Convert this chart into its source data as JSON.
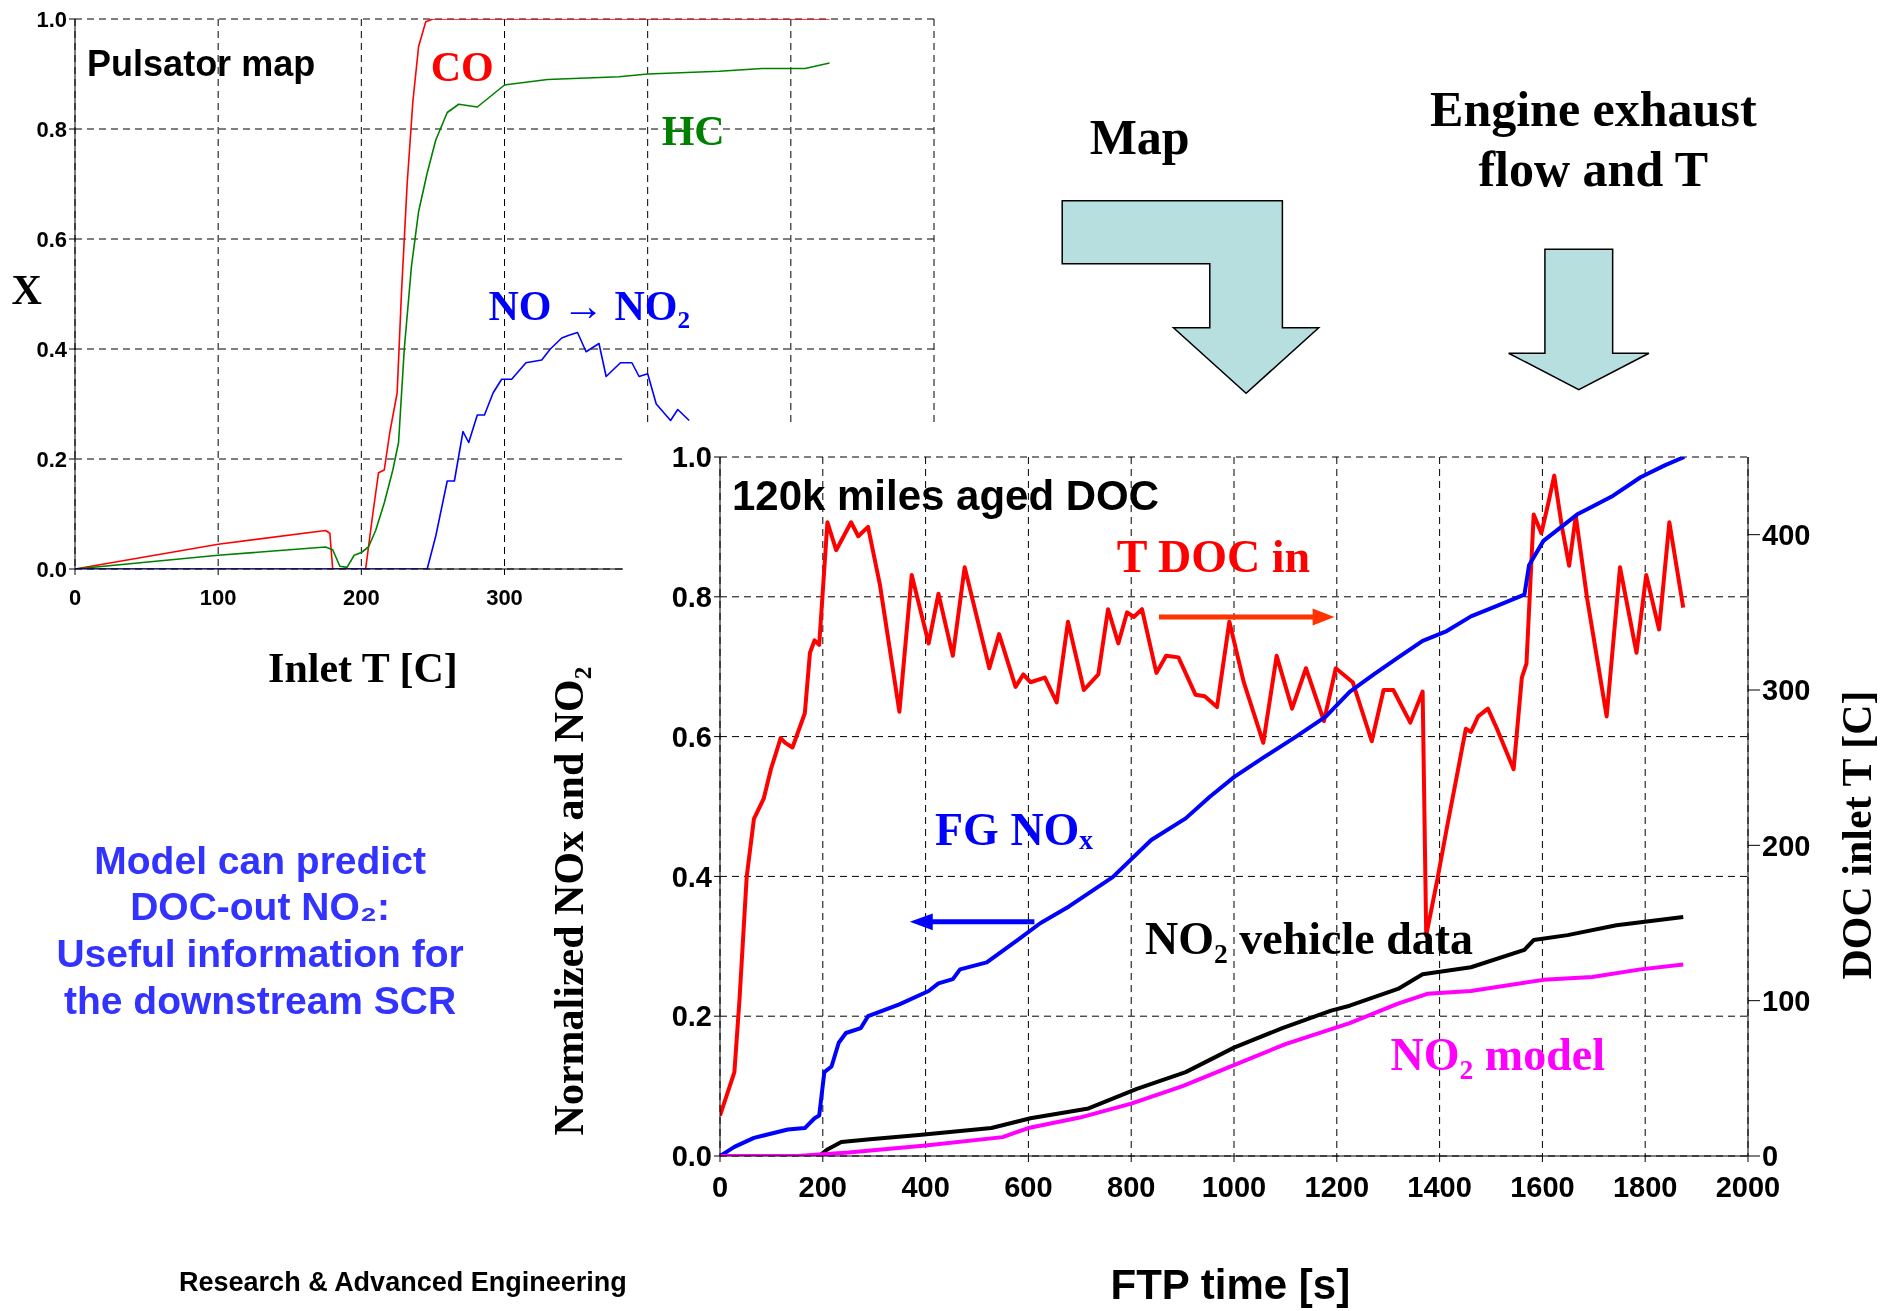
{
  "chart_data": [
    {
      "type": "line",
      "title": "Pulsator map",
      "xlabel": "Inlet T [C]",
      "ylabel": "X",
      "xlim": [
        0,
        600
      ],
      "xticks": [
        0,
        100,
        200,
        300,
        {
          "value": 400,
          "label": null
        },
        {
          "value": 500,
          "label": null
        },
        {
          "value": 600,
          "label": null
        }
      ],
      "ylim": [
        0,
        1
      ],
      "yticks": [
        {
          "value": 0,
          "label": "0.0"
        },
        {
          "value": 0.2,
          "label": "0.2"
        },
        {
          "value": 0.4,
          "label": "0.4"
        },
        {
          "value": 0.6,
          "label": "0.6"
        },
        {
          "value": 0.8,
          "label": "0.8"
        },
        {
          "value": 1,
          "label": "1.0"
        }
      ],
      "grid": true,
      "series": [
        {
          "name": "CO",
          "color": "#ff0000",
          "x": [
            0,
            100,
            175,
            178,
            180,
            203,
            208,
            212,
            216,
            220,
            225,
            228,
            232,
            236,
            240,
            245,
            250,
            527
          ],
          "values": [
            0,
            0.045,
            0.07,
            0.065,
            0,
            0,
            0.1,
            0.175,
            0.18,
            0.25,
            0.32,
            0.5,
            0.7,
            0.85,
            0.95,
            0.995,
            1,
            1
          ]
        },
        {
          "name": "HC",
          "color": "#008000",
          "x": [
            0,
            100,
            175,
            180,
            185,
            190,
            195,
            200,
            205,
            210,
            216,
            222,
            226,
            230,
            235,
            240,
            246,
            252,
            260,
            268,
            281,
            300,
            330,
            380,
            400,
            450,
            480,
            510,
            527
          ],
          "values": [
            0,
            0.025,
            0.04,
            0.035,
            0.005,
            0.003,
            0.025,
            0.03,
            0.04,
            0.07,
            0.12,
            0.18,
            0.23,
            0.4,
            0.55,
            0.65,
            0.72,
            0.78,
            0.83,
            0.845,
            0.84,
            0.88,
            0.89,
            0.895,
            0.9,
            0.905,
            0.91,
            0.91,
            0.92
          ]
        },
        {
          "name": "NO → NO₂",
          "color": "#0000ff",
          "x": [
            0,
            246,
            252,
            260,
            265,
            271,
            275,
            281,
            286,
            292,
            298,
            305,
            315,
            326,
            332,
            340,
            345,
            351,
            357,
            366,
            371,
            381,
            389,
            394,
            400,
            406,
            416,
            421,
            429
          ],
          "values": [
            0,
            0,
            0.06,
            0.16,
            0.16,
            0.25,
            0.23,
            0.28,
            0.28,
            0.32,
            0.345,
            0.345,
            0.375,
            0.38,
            0.4,
            0.42,
            0.425,
            0.43,
            0.395,
            0.41,
            0.35,
            0.375,
            0.375,
            0.35,
            0.355,
            0.3,
            0.27,
            0.29,
            0.27
          ]
        }
      ]
    },
    {
      "type": "line",
      "title": "120k miles aged DOC",
      "xlabel": "FTP time [s]",
      "ylabel": "Normalized NOx and NO₂",
      "y2label": "DOC inlet T [C]",
      "xlim": [
        0,
        2000
      ],
      "xticks": [
        0,
        200,
        400,
        600,
        800,
        1000,
        1200,
        1400,
        1600,
        1800,
        2000
      ],
      "ylim": [
        0,
        1
      ],
      "yticks": [
        {
          "value": 0,
          "label": "0.0"
        },
        {
          "value": 0.2,
          "label": "0.2"
        },
        {
          "value": 0.4,
          "label": "0.4"
        },
        {
          "value": 0.6,
          "label": "0.6"
        },
        {
          "value": 0.8,
          "label": "0.8"
        },
        {
          "value": 1,
          "label": "1.0"
        }
      ],
      "y2lim": [
        0,
        450
      ],
      "y2ticks": [
        0,
        100,
        200,
        300,
        400
      ],
      "grid": true,
      "annotations": [
        "Map",
        "Engine exhaust\nflow and T",
        "Model can predict\nDOC-out NO₂:\nUseful information for\nthe downstream SCR",
        "Research & Advanced Engineering"
      ],
      "series": [
        {
          "name": "T DOC in",
          "color": "#ff0000",
          "axis": "y2",
          "x": [
            0,
            9,
            28,
            38,
            52,
            66,
            85,
            99,
            118,
            127,
            141,
            165,
            175,
            184,
            193,
            209,
            226,
            255,
            269,
            288,
            311,
            349,
            373,
            406,
            425,
            453,
            476,
            524,
            543,
            575,
            590,
            604,
            632,
            655,
            677,
            708,
            736,
            755,
            775,
            792,
            805,
            821,
            849,
            868,
            892,
            925,
            943,
            967,
            991,
            1019,
            1057,
            1083,
            1113,
            1140,
            1175,
            1198,
            1231,
            1268,
            1291,
            1310,
            1343,
            1367,
            1374,
            1395,
            1414,
            1432,
            1451,
            1461,
            1475,
            1494,
            1513,
            1544,
            1560,
            1569,
            1583,
            1598,
            1612,
            1623,
            1638,
            1652,
            1665,
            1687,
            1725,
            1751,
            1783,
            1802,
            1827,
            1847,
            1874
          ],
          "values": [
            26,
            35,
            54,
            101,
            180,
            217,
            230,
            249,
            269,
            266,
            263,
            285,
            324,
            332,
            329,
            408,
            390,
            408,
            399,
            405,
            368,
            286,
            374,
            330,
            362,
            322,
            379,
            314,
            336,
            302,
            310,
            305,
            308,
            292,
            344,
            300,
            310,
            352,
            330,
            350,
            347,
            352,
            311,
            322,
            321,
            297,
            296,
            289,
            344,
            305,
            266,
            322,
            288,
            314,
            280,
            314,
            305,
            267,
            300,
            300,
            279,
            299,
            142,
            177,
            211,
            242,
            275,
            273,
            283,
            288,
            274,
            249,
            308,
            317,
            413,
            401,
            421,
            438,
            405,
            380,
            412,
            359,
            283,
            379,
            324,
            374,
            339,
            408,
            353
          ]
        },
        {
          "name": "FG NOₓ",
          "color": "#0000ff",
          "x": [
            0,
            28,
            66,
            132,
            165,
            184,
            193,
            203,
            217,
            231,
            245,
            274,
            288,
            349,
            406,
            425,
            453,
            467,
            519,
            566,
            623,
            679,
            764,
            839,
            906,
            953,
            1000,
            1057,
            1123,
            1179,
            1225,
            1272,
            1319,
            1367,
            1414,
            1461,
            1508,
            1565,
            1574,
            1602,
            1668,
            1734,
            1791,
            1838,
            1876
          ],
          "values": [
            0,
            0.013,
            0.026,
            0.038,
            0.04,
            0.054,
            0.058,
            0.12,
            0.128,
            0.162,
            0.176,
            0.183,
            0.2,
            0.217,
            0.236,
            0.247,
            0.253,
            0.267,
            0.277,
            0.302,
            0.333,
            0.357,
            0.399,
            0.452,
            0.483,
            0.514,
            0.542,
            0.57,
            0.601,
            0.629,
            0.664,
            0.689,
            0.713,
            0.737,
            0.751,
            0.772,
            0.786,
            0.803,
            0.845,
            0.88,
            0.918,
            0.943,
            0.971,
            0.988,
            1
          ]
        },
        {
          "name": "NO₂ vehicle data",
          "color": "#000000",
          "x": [
            0,
            193,
            208,
            236,
            292,
            387,
            528,
            604,
            717,
            811,
            906,
            1000,
            1094,
            1189,
            1225,
            1319,
            1367,
            1461,
            1565,
            1583,
            1649,
            1744,
            1874
          ],
          "values": [
            0,
            0,
            0.009,
            0.02,
            0.024,
            0.03,
            0.04,
            0.054,
            0.068,
            0.096,
            0.12,
            0.155,
            0.183,
            0.208,
            0.215,
            0.239,
            0.26,
            0.27,
            0.295,
            0.309,
            0.316,
            0.33,
            0.342
          ]
        },
        {
          "name": "NO₂ model",
          "color": "#ff00ff",
          "x": [
            0,
            150,
            250,
            400,
            550,
            600,
            700,
            800,
            900,
            1000,
            1100,
            1225,
            1319,
            1376,
            1461,
            1602,
            1697,
            1791,
            1874
          ],
          "values": [
            0,
            0,
            0.005,
            0.015,
            0.027,
            0.04,
            0.055,
            0.075,
            0.1,
            0.13,
            0.16,
            0.19,
            0.218,
            0.232,
            0.236,
            0.252,
            0.256,
            0.267,
            0.274
          ]
        }
      ]
    }
  ]
}
